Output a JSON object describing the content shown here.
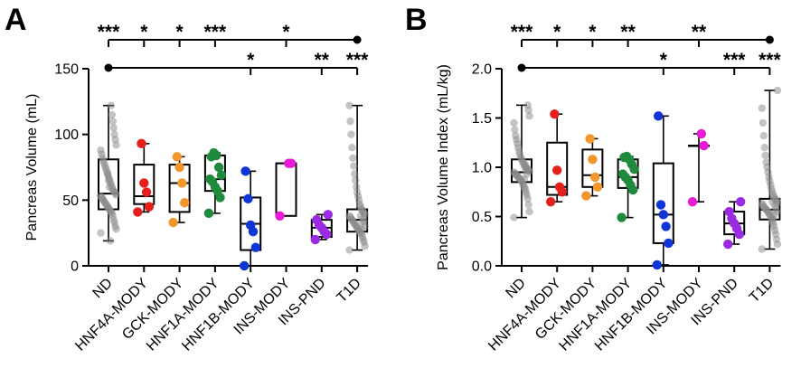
{
  "colors": {
    "ND": "#8a8a8a",
    "HNF4A-MODY": "#e3201b",
    "GCK-MODY": "#f2962e",
    "HNF1A-MODY": "#1f8a3c",
    "HNF1B-MODY": "#1035d6",
    "INS-MODY": "#e81ad6",
    "INS-PND": "#9a2be2",
    "T1D": "#8a8a8a"
  },
  "chart_data": [
    {
      "type": "boxplot",
      "panel": "A",
      "ylabel": "Pancreas Volume (mL)",
      "ylim": [
        0,
        150
      ],
      "yticks": [
        "0",
        "50",
        "100",
        "150"
      ],
      "categories": [
        "ND",
        "HNF4A-MODY",
        "GCK-MODY",
        "HNF1A-MODY",
        "HNF1B-MODY",
        "INS-MODY",
        "INS-PND",
        "T1D"
      ],
      "boxes": [
        {
          "min": 19,
          "q1": 43,
          "median": 55,
          "q3": 81,
          "max": 122
        },
        {
          "min": 41,
          "q1": 47,
          "median": 53,
          "q3": 77,
          "max": 93
        },
        {
          "min": 33,
          "q1": 41,
          "median": 63,
          "q3": 77,
          "max": 83
        },
        {
          "min": 40,
          "q1": 57,
          "median": 66,
          "q3": 84,
          "max": 86
        },
        {
          "min": 0,
          "q1": 12,
          "median": 32,
          "q3": 52,
          "max": 72
        },
        {
          "min": 38,
          "q1": 38,
          "median": 78,
          "q3": 78,
          "max": 78
        },
        {
          "min": 20,
          "q1": 22,
          "median": 29,
          "q3": 35,
          "max": 39
        },
        {
          "min": 12,
          "q1": 26,
          "median": 35,
          "q3": 43,
          "max": 122
        }
      ],
      "points": [
        [
          25,
          28,
          30,
          33,
          35,
          38,
          40,
          41,
          42,
          43,
          44,
          45,
          46,
          47,
          48,
          49,
          50,
          51,
          52,
          53,
          54,
          55,
          56,
          57,
          58,
          60,
          62,
          64,
          66,
          68,
          70,
          72,
          74,
          76,
          78,
          80,
          82,
          85,
          88,
          92,
          96,
          100,
          105,
          110,
          115,
          122,
          19,
          60,
          65,
          70
        ],
        [
          41,
          45,
          56,
          63,
          93
        ],
        [
          33,
          48,
          63,
          75,
          83
        ],
        [
          40,
          52,
          57,
          60,
          64,
          66,
          69,
          75,
          84,
          86,
          83
        ],
        [
          0,
          14,
          26,
          31,
          51,
          72
        ],
        [
          38,
          78,
          78
        ],
        [
          20,
          24,
          26,
          29,
          31,
          35,
          39
        ],
        [
          12,
          15,
          18,
          20,
          22,
          24,
          25,
          26,
          27,
          28,
          29,
          30,
          31,
          32,
          33,
          34,
          35,
          36,
          37,
          38,
          39,
          40,
          41,
          42,
          43,
          45,
          47,
          50,
          53,
          56,
          60,
          65,
          70,
          76,
          82,
          90,
          100,
          110,
          122,
          30,
          34,
          36,
          33,
          28,
          38
        ]
      ],
      "annotations": {
        "top_line_from": "T1D",
        "top_stars": [
          {
            "category": "ND",
            "text": "***"
          },
          {
            "category": "HNF4A-MODY",
            "text": "*"
          },
          {
            "category": "GCK-MODY",
            "text": "*"
          },
          {
            "category": "HNF1A-MODY",
            "text": "***"
          },
          {
            "category": "INS-MODY",
            "text": "*"
          }
        ],
        "lower_line_from": "ND",
        "lower_stars": [
          {
            "category": "HNF1B-MODY",
            "text": "*"
          },
          {
            "category": "INS-PND",
            "text": "**"
          },
          {
            "category": "T1D",
            "text": "***"
          }
        ]
      }
    },
    {
      "type": "boxplot",
      "panel": "B",
      "ylabel": "Pancreas Volume Index (mL/kg)",
      "ylim": [
        0,
        2.0
      ],
      "yticks": [
        "0.0",
        "0.5",
        "1.0",
        "1.5",
        "2.0"
      ],
      "categories": [
        "ND",
        "HNF4A-MODY",
        "GCK-MODY",
        "HNF1A-MODY",
        "HNF1B-MODY",
        "INS-MODY",
        "INS-PND",
        "T1D"
      ],
      "boxes": [
        {
          "min": 0.49,
          "q1": 0.85,
          "median": 0.95,
          "q3": 1.08,
          "max": 1.63
        },
        {
          "min": 0.65,
          "q1": 0.72,
          "median": 0.8,
          "q3": 1.25,
          "max": 1.54
        },
        {
          "min": 0.71,
          "q1": 0.8,
          "median": 0.92,
          "q3": 1.18,
          "max": 1.29
        },
        {
          "min": 0.49,
          "q1": 0.79,
          "median": 0.9,
          "q3": 1.08,
          "max": 1.11
        },
        {
          "min": 0.01,
          "q1": 0.23,
          "median": 0.52,
          "q3": 1.04,
          "max": 1.52
        },
        {
          "min": 0.65,
          "q1": 1.22,
          "median": 1.22,
          "q3": 1.22,
          "max": 1.34
        },
        {
          "min": 0.22,
          "q1": 0.32,
          "median": 0.43,
          "q3": 0.55,
          "max": 0.65
        },
        {
          "min": 0.17,
          "q1": 0.47,
          "median": 0.57,
          "q3": 0.68,
          "max": 1.78
        }
      ],
      "points": [
        [
          0.49,
          0.55,
          0.62,
          0.68,
          0.72,
          0.75,
          0.78,
          0.8,
          0.82,
          0.84,
          0.86,
          0.87,
          0.88,
          0.89,
          0.9,
          0.91,
          0.92,
          0.93,
          0.94,
          0.95,
          0.96,
          0.97,
          0.98,
          0.99,
          1.0,
          1.01,
          1.02,
          1.04,
          1.06,
          1.08,
          1.1,
          1.13,
          1.16,
          1.2,
          1.24,
          1.28,
          1.32,
          1.38,
          1.45,
          1.52,
          1.58,
          1.63,
          0.93,
          0.97,
          1.03,
          0.88
        ],
        [
          0.65,
          0.75,
          0.8,
          0.97,
          1.54
        ],
        [
          0.71,
          0.8,
          0.9,
          1.08,
          1.29
        ],
        [
          0.49,
          0.77,
          0.82,
          0.87,
          0.9,
          0.93,
          0.98,
          1.03,
          1.08,
          1.11,
          1.1
        ],
        [
          0.01,
          0.23,
          0.4,
          0.52,
          0.62,
          1.52
        ],
        [
          0.65,
          1.22,
          1.34
        ],
        [
          0.22,
          0.32,
          0.38,
          0.43,
          0.48,
          0.55,
          0.65
        ],
        [
          0.17,
          0.22,
          0.27,
          0.32,
          0.36,
          0.4,
          0.43,
          0.46,
          0.48,
          0.5,
          0.52,
          0.53,
          0.55,
          0.56,
          0.57,
          0.58,
          0.59,
          0.6,
          0.62,
          0.63,
          0.64,
          0.66,
          0.67,
          0.68,
          0.7,
          0.72,
          0.75,
          0.78,
          0.82,
          0.86,
          0.9,
          0.95,
          1.0,
          1.05,
          1.12,
          1.2,
          1.32,
          1.45,
          1.6,
          1.78,
          0.55,
          0.58,
          0.61,
          0.52,
          0.48,
          0.65
        ]
      ],
      "annotations": {
        "top_line_from": "T1D",
        "top_stars": [
          {
            "category": "ND",
            "text": "***"
          },
          {
            "category": "HNF4A-MODY",
            "text": "*"
          },
          {
            "category": "GCK-MODY",
            "text": "*"
          },
          {
            "category": "HNF1A-MODY",
            "text": "**"
          },
          {
            "category": "INS-MODY",
            "text": "**"
          }
        ],
        "lower_line_from": "ND",
        "lower_stars": [
          {
            "category": "HNF1B-MODY",
            "text": "*"
          },
          {
            "category": "INS-PND",
            "text": "***"
          },
          {
            "category": "T1D",
            "text": "***"
          }
        ]
      }
    }
  ]
}
